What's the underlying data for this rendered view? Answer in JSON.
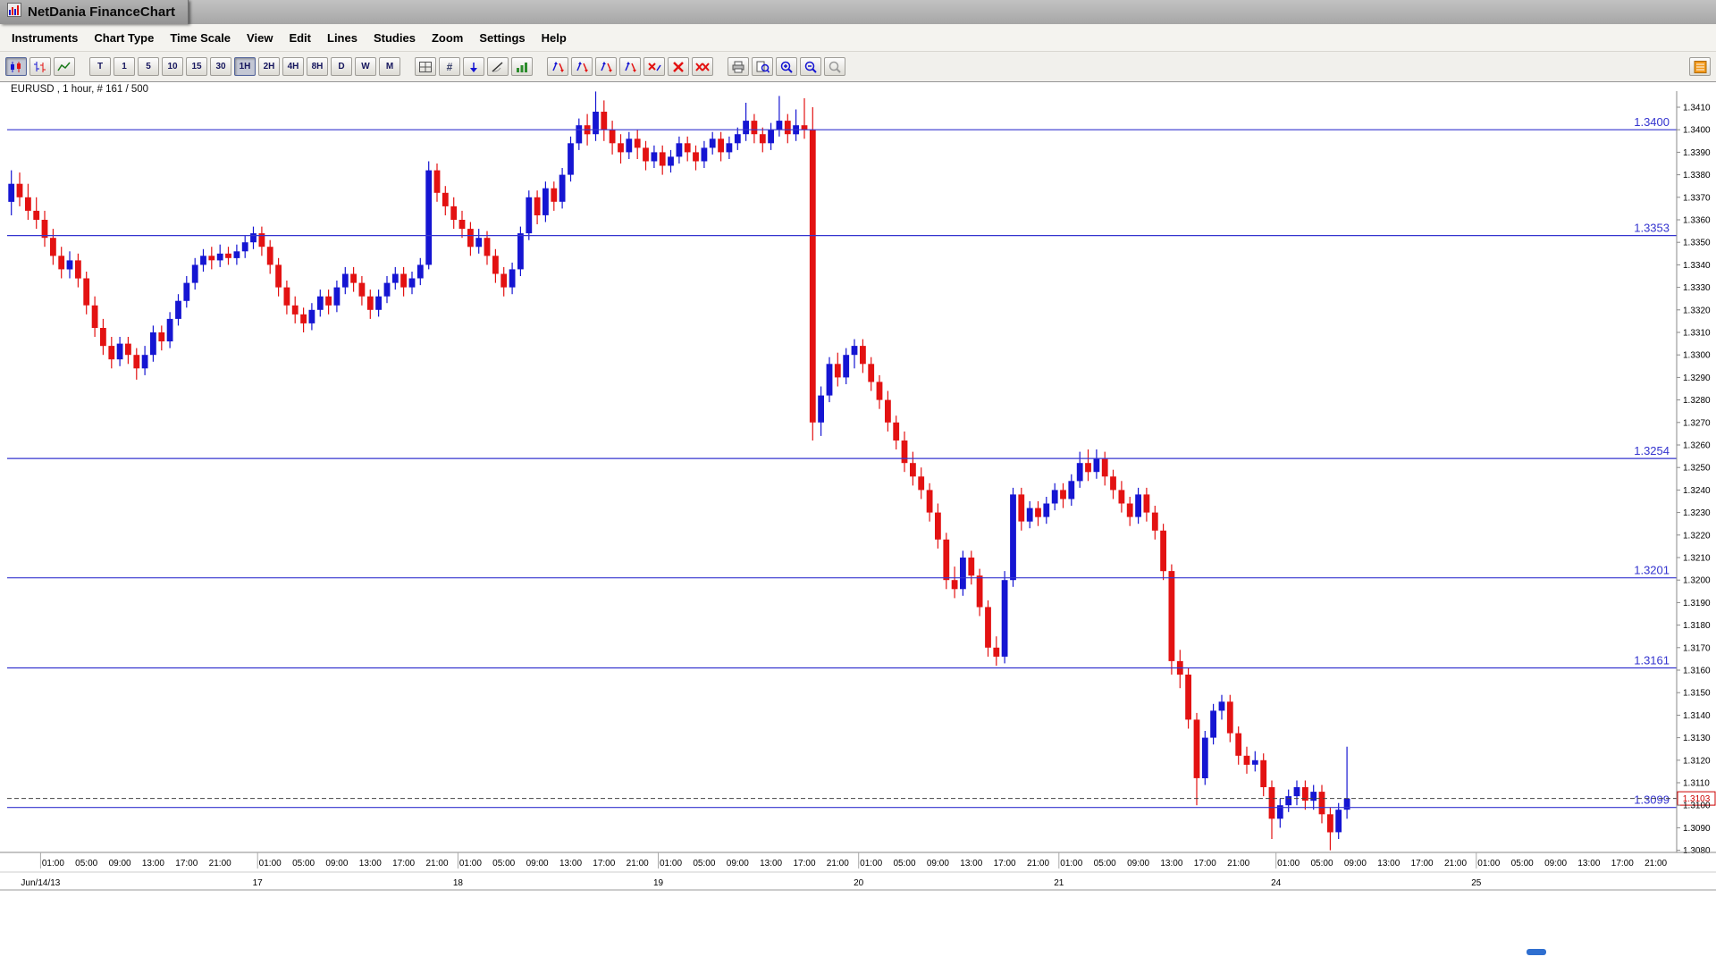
{
  "window": {
    "title": "NetDania FinanceChart"
  },
  "menu": {
    "items": [
      "Instruments",
      "Chart Type",
      "Time Scale",
      "View",
      "Edit",
      "Lines",
      "Studies",
      "Zoom",
      "Settings",
      "Help"
    ]
  },
  "toolbar": {
    "chart_type_buttons": [
      {
        "name": "candlestick-chart-button",
        "icon": "candlestick-icon",
        "active": true
      },
      {
        "name": "ohlc-bar-chart-button",
        "icon": "ohlc-icon"
      },
      {
        "name": "line-chart-button",
        "icon": "line-chart-icon"
      }
    ],
    "time_buttons": [
      {
        "label": "T"
      },
      {
        "label": "1"
      },
      {
        "label": "5"
      },
      {
        "label": "10"
      },
      {
        "label": "15"
      },
      {
        "label": "30"
      },
      {
        "label": "1H",
        "active": true
      },
      {
        "label": "2H"
      },
      {
        "label": "4H"
      },
      {
        "label": "8H"
      },
      {
        "label": "D"
      },
      {
        "label": "W"
      },
      {
        "label": "M"
      }
    ],
    "tool_buttons": [
      {
        "name": "grid-button",
        "icon": "grid-icon"
      },
      {
        "name": "crosshair-values-button",
        "icon": "hash-icon"
      },
      {
        "name": "annotation-arrow-button",
        "icon": "arrow-down-icon"
      },
      {
        "name": "trendline-button",
        "icon": "trendline-icon"
      },
      {
        "name": "volume-histogram-button",
        "icon": "histogram-icon"
      }
    ],
    "signal_buttons": [
      {
        "name": "signal-arrows-button-1",
        "icon": "arrows-updown-icon"
      },
      {
        "name": "signal-arrows-button-2",
        "icon": "arrows-updown-icon"
      },
      {
        "name": "signal-arrows-button-3",
        "icon": "arrows-updown-icon"
      },
      {
        "name": "signal-arrows-button-4",
        "icon": "arrows-updown-icon"
      },
      {
        "name": "remove-study-button",
        "icon": "remove-arrows-icon"
      },
      {
        "name": "remove-line-button",
        "icon": "red-x-icon"
      },
      {
        "name": "remove-all-lines-button",
        "icon": "double-red-x-icon"
      }
    ],
    "output_buttons": [
      {
        "name": "print-button",
        "icon": "print-icon"
      },
      {
        "name": "print-preview-button",
        "icon": "print-preview-icon"
      },
      {
        "name": "zoom-in-button",
        "icon": "zoom-in-icon"
      },
      {
        "name": "zoom-out-button",
        "icon": "zoom-out-icon"
      },
      {
        "name": "zoom-off-button",
        "icon": "zoom-off-icon"
      }
    ],
    "right_button": {
      "name": "detach-panel-button",
      "icon": "orange-panel-icon"
    }
  },
  "chart": {
    "instrument_label": "EURUSD , 1 hour, # 161 / 500",
    "current_price_label": "1.3103",
    "colors": {
      "up_candle": "#1515d2",
      "down_candle": "#e31212",
      "level_line": "#3434cf",
      "current_price": "#cc0000",
      "axis_text": "#000000"
    }
  },
  "chart_data": {
    "type": "candlestick",
    "title": "EURUSD , 1 hour, # 161 / 500",
    "instrument": "EURUSD",
    "interval": "1 hour",
    "y_axis": {
      "min": 1.308,
      "max": 1.341,
      "step": 0.001,
      "decimals": 4
    },
    "x_axis": {
      "total_slots": 200,
      "days": [
        {
          "label": "Jun/14/13",
          "start": 4
        },
        {
          "label": "17",
          "start": 30
        },
        {
          "label": "18",
          "start": 54
        },
        {
          "label": "19",
          "start": 78
        },
        {
          "label": "20",
          "start": 102
        },
        {
          "label": "21",
          "start": 126
        },
        {
          "label": "24",
          "start": 152
        },
        {
          "label": "25",
          "start": 176
        }
      ],
      "ticks": [
        {
          "offset": 1,
          "label": "01:00"
        },
        {
          "offset": 5,
          "label": "05:00"
        },
        {
          "offset": 9,
          "label": "09:00"
        },
        {
          "offset": 13,
          "label": "13:00"
        },
        {
          "offset": 17,
          "label": "17:00"
        },
        {
          "offset": 21,
          "label": "21:00"
        }
      ]
    },
    "levels": [
      1.34,
      1.3353,
      1.3254,
      1.3201,
      1.3161,
      1.3099
    ],
    "current_price": 1.3103,
    "candles": [
      [
        1.3368,
        1.3382,
        1.3362,
        1.3376
      ],
      [
        1.3376,
        1.3381,
        1.3366,
        1.337
      ],
      [
        1.337,
        1.3376,
        1.336,
        1.3364
      ],
      [
        1.3364,
        1.337,
        1.3356,
        1.336
      ],
      [
        1.336,
        1.3364,
        1.3348,
        1.3352
      ],
      [
        1.3352,
        1.3356,
        1.334,
        1.3344
      ],
      [
        1.3344,
        1.3348,
        1.3334,
        1.3338
      ],
      [
        1.3338,
        1.3346,
        1.3334,
        1.3342
      ],
      [
        1.3342,
        1.3345,
        1.333,
        1.3334
      ],
      [
        1.3334,
        1.3337,
        1.3318,
        1.3322
      ],
      [
        1.3322,
        1.3326,
        1.3308,
        1.3312
      ],
      [
        1.3312,
        1.3316,
        1.33,
        1.3304
      ],
      [
        1.3304,
        1.3308,
        1.3294,
        1.3298
      ],
      [
        1.3298,
        1.3308,
        1.3295,
        1.3305
      ],
      [
        1.3305,
        1.3308,
        1.3296,
        1.33
      ],
      [
        1.33,
        1.3303,
        1.3289,
        1.3294
      ],
      [
        1.3294,
        1.3304,
        1.3291,
        1.33
      ],
      [
        1.33,
        1.3313,
        1.3297,
        1.331
      ],
      [
        1.331,
        1.3313,
        1.3302,
        1.3306
      ],
      [
        1.3306,
        1.3319,
        1.3303,
        1.3316
      ],
      [
        1.3316,
        1.3327,
        1.3313,
        1.3324
      ],
      [
        1.3324,
        1.3335,
        1.3321,
        1.3332
      ],
      [
        1.3332,
        1.3343,
        1.3329,
        1.334
      ],
      [
        1.334,
        1.3347,
        1.3337,
        1.3344
      ],
      [
        1.3344,
        1.3348,
        1.3338,
        1.3342
      ],
      [
        1.3342,
        1.3349,
        1.3339,
        1.3345
      ],
      [
        1.3345,
        1.3348,
        1.334,
        1.3343
      ],
      [
        1.3343,
        1.3349,
        1.334,
        1.3346
      ],
      [
        1.3346,
        1.3353,
        1.3343,
        1.335
      ],
      [
        1.335,
        1.3357,
        1.3347,
        1.3354
      ],
      [
        1.3354,
        1.3357,
        1.3344,
        1.3348
      ],
      [
        1.3348,
        1.3351,
        1.3336,
        1.334
      ],
      [
        1.334,
        1.3343,
        1.3326,
        1.333
      ],
      [
        1.333,
        1.3333,
        1.3318,
        1.3322
      ],
      [
        1.3322,
        1.3326,
        1.3314,
        1.3318
      ],
      [
        1.3318,
        1.3321,
        1.331,
        1.3314
      ],
      [
        1.3314,
        1.3323,
        1.3311,
        1.332
      ],
      [
        1.332,
        1.3329,
        1.3317,
        1.3326
      ],
      [
        1.3326,
        1.3329,
        1.3318,
        1.3322
      ],
      [
        1.3322,
        1.3333,
        1.3319,
        1.333
      ],
      [
        1.333,
        1.3339,
        1.3327,
        1.3336
      ],
      [
        1.3336,
        1.3339,
        1.3328,
        1.3332
      ],
      [
        1.3332,
        1.3335,
        1.3322,
        1.3326
      ],
      [
        1.3326,
        1.3329,
        1.3316,
        1.332
      ],
      [
        1.332,
        1.3329,
        1.3317,
        1.3326
      ],
      [
        1.3326,
        1.3335,
        1.3323,
        1.3332
      ],
      [
        1.3332,
        1.3339,
        1.3329,
        1.3336
      ],
      [
        1.3336,
        1.3339,
        1.3326,
        1.333
      ],
      [
        1.333,
        1.3337,
        1.3327,
        1.3334
      ],
      [
        1.3334,
        1.3343,
        1.3331,
        1.334
      ],
      [
        1.334,
        1.3386,
        1.3338,
        1.3382
      ],
      [
        1.3382,
        1.3385,
        1.3368,
        1.3372
      ],
      [
        1.3372,
        1.3375,
        1.3362,
        1.3366
      ],
      [
        1.3366,
        1.337,
        1.3356,
        1.336
      ],
      [
        1.336,
        1.3364,
        1.3352,
        1.3356
      ],
      [
        1.3356,
        1.3359,
        1.3344,
        1.3348
      ],
      [
        1.3348,
        1.3356,
        1.3345,
        1.3352
      ],
      [
        1.3352,
        1.3355,
        1.334,
        1.3344
      ],
      [
        1.3344,
        1.3347,
        1.3332,
        1.3336
      ],
      [
        1.3336,
        1.3339,
        1.3326,
        1.333
      ],
      [
        1.333,
        1.3341,
        1.3327,
        1.3338
      ],
      [
        1.3338,
        1.3357,
        1.3335,
        1.3354
      ],
      [
        1.3354,
        1.3373,
        1.3351,
        1.337
      ],
      [
        1.337,
        1.3373,
        1.3358,
        1.3362
      ],
      [
        1.3362,
        1.3377,
        1.3359,
        1.3374
      ],
      [
        1.3374,
        1.3377,
        1.3364,
        1.3368
      ],
      [
        1.3368,
        1.3383,
        1.3365,
        1.338
      ],
      [
        1.338,
        1.3397,
        1.3377,
        1.3394
      ],
      [
        1.3394,
        1.3405,
        1.3391,
        1.3402
      ],
      [
        1.3402,
        1.3407,
        1.3393,
        1.3398
      ],
      [
        1.3398,
        1.3417,
        1.3395,
        1.3408
      ],
      [
        1.3408,
        1.3413,
        1.3395,
        1.34
      ],
      [
        1.34,
        1.3404,
        1.3389,
        1.3394
      ],
      [
        1.3394,
        1.3398,
        1.3385,
        1.339
      ],
      [
        1.339,
        1.3399,
        1.3387,
        1.3396
      ],
      [
        1.3396,
        1.34,
        1.3387,
        1.3392
      ],
      [
        1.3392,
        1.3395,
        1.3382,
        1.3386
      ],
      [
        1.3386,
        1.3393,
        1.3383,
        1.339
      ],
      [
        1.339,
        1.3393,
        1.338,
        1.3384
      ],
      [
        1.3384,
        1.3391,
        1.3381,
        1.3388
      ],
      [
        1.3388,
        1.3397,
        1.3385,
        1.3394
      ],
      [
        1.3394,
        1.3397,
        1.3386,
        1.339
      ],
      [
        1.339,
        1.3393,
        1.3382,
        1.3386
      ],
      [
        1.3386,
        1.3395,
        1.3383,
        1.3392
      ],
      [
        1.3392,
        1.3399,
        1.3389,
        1.3396
      ],
      [
        1.3396,
        1.3399,
        1.3386,
        1.339
      ],
      [
        1.339,
        1.3397,
        1.3387,
        1.3394
      ],
      [
        1.3394,
        1.3401,
        1.3391,
        1.3398
      ],
      [
        1.3398,
        1.3412,
        1.3395,
        1.3404
      ],
      [
        1.3404,
        1.3407,
        1.3394,
        1.3398
      ],
      [
        1.3398,
        1.3401,
        1.339,
        1.3394
      ],
      [
        1.3394,
        1.3403,
        1.3391,
        1.34
      ],
      [
        1.34,
        1.3415,
        1.3397,
        1.3404
      ],
      [
        1.3404,
        1.3407,
        1.3394,
        1.3398
      ],
      [
        1.3398,
        1.3409,
        1.3395,
        1.3402
      ],
      [
        1.3402,
        1.3414,
        1.3396,
        1.34
      ],
      [
        1.34,
        1.341,
        1.3262,
        1.327
      ],
      [
        1.327,
        1.3286,
        1.3264,
        1.3282
      ],
      [
        1.3282,
        1.3299,
        1.3279,
        1.3296
      ],
      [
        1.3296,
        1.3301,
        1.3286,
        1.329
      ],
      [
        1.329,
        1.3303,
        1.3287,
        1.33
      ],
      [
        1.33,
        1.3307,
        1.3294,
        1.3304
      ],
      [
        1.3304,
        1.3307,
        1.3292,
        1.3296
      ],
      [
        1.3296,
        1.3299,
        1.3284,
        1.3288
      ],
      [
        1.3288,
        1.3291,
        1.3276,
        1.328
      ],
      [
        1.328,
        1.3284,
        1.3266,
        1.327
      ],
      [
        1.327,
        1.3273,
        1.3258,
        1.3262
      ],
      [
        1.3262,
        1.3266,
        1.3248,
        1.3252
      ],
      [
        1.3252,
        1.3257,
        1.3242,
        1.3246
      ],
      [
        1.3246,
        1.325,
        1.3236,
        1.324
      ],
      [
        1.324,
        1.3243,
        1.3226,
        1.323
      ],
      [
        1.323,
        1.3234,
        1.3214,
        1.3218
      ],
      [
        1.3218,
        1.3221,
        1.3196,
        1.32
      ],
      [
        1.32,
        1.3206,
        1.3192,
        1.3196
      ],
      [
        1.3196,
        1.3213,
        1.3193,
        1.321
      ],
      [
        1.321,
        1.3213,
        1.3198,
        1.3202
      ],
      [
        1.3202,
        1.3205,
        1.3184,
        1.3188
      ],
      [
        1.3188,
        1.3191,
        1.3166,
        1.317
      ],
      [
        1.317,
        1.3175,
        1.3162,
        1.3166
      ],
      [
        1.3166,
        1.3204,
        1.3163,
        1.32
      ],
      [
        1.32,
        1.3241,
        1.3197,
        1.3238
      ],
      [
        1.3238,
        1.3241,
        1.3222,
        1.3226
      ],
      [
        1.3226,
        1.3235,
        1.3223,
        1.3232
      ],
      [
        1.3232,
        1.3235,
        1.3224,
        1.3228
      ],
      [
        1.3228,
        1.3237,
        1.3225,
        1.3234
      ],
      [
        1.3234,
        1.3243,
        1.3231,
        1.324
      ],
      [
        1.324,
        1.3243,
        1.3232,
        1.3236
      ],
      [
        1.3236,
        1.3247,
        1.3233,
        1.3244
      ],
      [
        1.3244,
        1.3257,
        1.3241,
        1.3252
      ],
      [
        1.3252,
        1.3258,
        1.3244,
        1.3248
      ],
      [
        1.3248,
        1.3258,
        1.3245,
        1.3254
      ],
      [
        1.3254,
        1.3257,
        1.3242,
        1.3246
      ],
      [
        1.3246,
        1.3249,
        1.3236,
        1.324
      ],
      [
        1.324,
        1.3244,
        1.323,
        1.3234
      ],
      [
        1.3234,
        1.3237,
        1.3224,
        1.3228
      ],
      [
        1.3228,
        1.3241,
        1.3225,
        1.3238
      ],
      [
        1.3238,
        1.3241,
        1.3226,
        1.323
      ],
      [
        1.323,
        1.3233,
        1.3218,
        1.3222
      ],
      [
        1.3222,
        1.3225,
        1.32,
        1.3204
      ],
      [
        1.3204,
        1.3207,
        1.3158,
        1.3164
      ],
      [
        1.3164,
        1.3169,
        1.3152,
        1.3158
      ],
      [
        1.3158,
        1.3161,
        1.3134,
        1.3138
      ],
      [
        1.3138,
        1.3141,
        1.31,
        1.3112
      ],
      [
        1.3112,
        1.3133,
        1.3109,
        1.313
      ],
      [
        1.313,
        1.3145,
        1.3127,
        1.3142
      ],
      [
        1.3142,
        1.3149,
        1.3138,
        1.3146
      ],
      [
        1.3146,
        1.3149,
        1.3128,
        1.3132
      ],
      [
        1.3132,
        1.3135,
        1.3118,
        1.3122
      ],
      [
        1.3122,
        1.3126,
        1.3114,
        1.3118
      ],
      [
        1.3118,
        1.3124,
        1.3115,
        1.312
      ],
      [
        1.312,
        1.3123,
        1.3104,
        1.3108
      ],
      [
        1.3108,
        1.3111,
        1.3085,
        1.3094
      ],
      [
        1.3094,
        1.3103,
        1.309,
        1.31
      ],
      [
        1.31,
        1.3107,
        1.3097,
        1.3104
      ],
      [
        1.3104,
        1.3111,
        1.31,
        1.3108
      ],
      [
        1.3108,
        1.3111,
        1.3098,
        1.3102
      ],
      [
        1.3102,
        1.3109,
        1.3098,
        1.3106
      ],
      [
        1.3106,
        1.3109,
        1.3092,
        1.3096
      ],
      [
        1.3096,
        1.3099,
        1.308,
        1.3088
      ],
      [
        1.3088,
        1.3101,
        1.3085,
        1.3098
      ],
      [
        1.3098,
        1.3126,
        1.3094,
        1.3103
      ]
    ]
  }
}
